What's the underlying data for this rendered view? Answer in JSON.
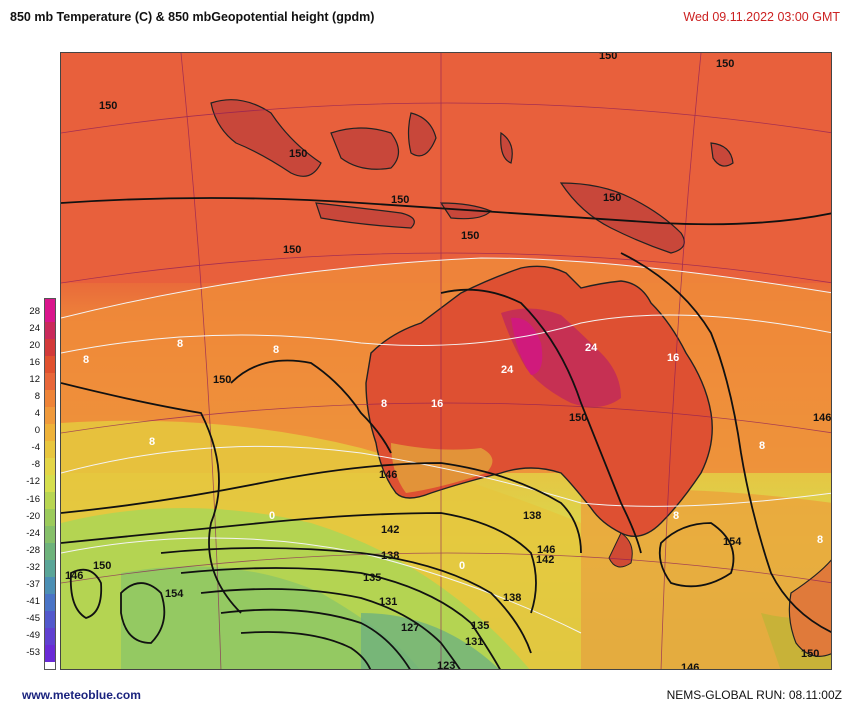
{
  "header": {
    "title": "850 mb Temperature (C)  & 850 mbGeopotential height (gpdm)",
    "datetime": "Wed 09.11.2022  03:00 GMT"
  },
  "legend": {
    "labels": [
      "28",
      "24",
      "20",
      "16",
      "12",
      "8",
      "4",
      "0",
      "-4",
      "-8",
      "-12",
      "-16",
      "-20",
      "-24",
      "-28",
      "-32",
      "-37",
      "-41",
      "-45",
      "-49",
      "-53"
    ],
    "colors": [
      "#d9168c",
      "#c92a5b",
      "#d23a3a",
      "#e0512f",
      "#e8673a",
      "#ee8438",
      "#f09a3c",
      "#eeb23a",
      "#e8c63e",
      "#e4d648",
      "#d6df4e",
      "#b8d652",
      "#9ccb5c",
      "#86c06a",
      "#6eb37c",
      "#5aa598",
      "#4c8fb4",
      "#4a74c6",
      "#5258cc",
      "#6040d0",
      "#6a2ad6"
    ]
  },
  "map": {
    "height_labels": [
      "150",
      "150",
      "150",
      "150",
      "150",
      "150",
      "150",
      "150",
      "150",
      "146",
      "146",
      "146",
      "142",
      "142",
      "138",
      "138",
      "138",
      "135",
      "135",
      "131",
      "131",
      "127",
      "123",
      "154",
      "154",
      "150",
      "146",
      "150",
      "146",
      "150"
    ],
    "temp_labels": [
      "24",
      "24",
      "16",
      "16",
      "8",
      "8",
      "8",
      "8",
      "8",
      "8",
      "0",
      "0",
      "8",
      "8"
    ]
  },
  "footer": {
    "source": "www.meteoblue.com",
    "run": "NEMS-GLOBAL  RUN: 08.11:00Z"
  }
}
